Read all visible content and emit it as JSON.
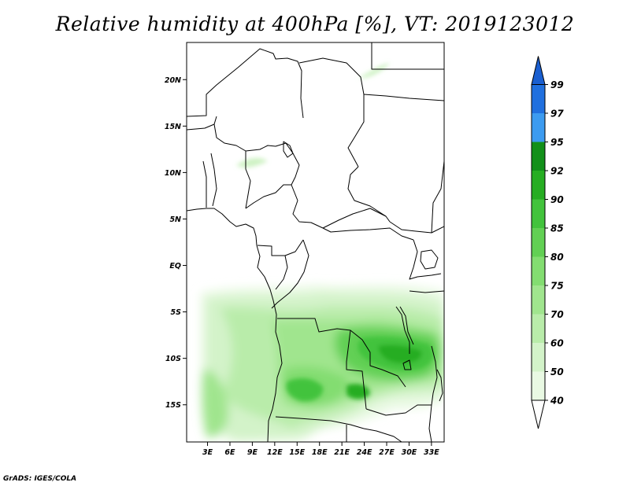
{
  "title": "Relative humidity at 400hPa [%], VT: 2019123012",
  "footer": "GrADS: IGES/COLA",
  "map": {
    "lat_range": [
      -19,
      24
    ],
    "lon_range": [
      0.2,
      34.7
    ],
    "lat_ticks": [
      {
        "value": 20,
        "label": "20N"
      },
      {
        "value": 15,
        "label": "15N"
      },
      {
        "value": 10,
        "label": "10N"
      },
      {
        "value": 5,
        "label": "5N"
      },
      {
        "value": 0,
        "label": "EQ"
      },
      {
        "value": -5,
        "label": "5S"
      },
      {
        "value": -10,
        "label": "10S"
      },
      {
        "value": -15,
        "label": "15S"
      }
    ],
    "lon_ticks": [
      {
        "value": 3,
        "label": "3E"
      },
      {
        "value": 6,
        "label": "6E"
      },
      {
        "value": 9,
        "label": "9E"
      },
      {
        "value": 12,
        "label": "12E"
      },
      {
        "value": 15,
        "label": "15E"
      },
      {
        "value": 18,
        "label": "18E"
      },
      {
        "value": 21,
        "label": "21E"
      },
      {
        "value": 24,
        "label": "24E"
      },
      {
        "value": 27,
        "label": "27E"
      },
      {
        "value": 30,
        "label": "30E"
      },
      {
        "value": 33,
        "label": "33E"
      }
    ]
  },
  "colorbar": {
    "levels": [
      {
        "label": "40",
        "color": "#e9f9e3"
      },
      {
        "label": "50",
        "color": "#d3f3c9"
      },
      {
        "label": "60",
        "color": "#b9ecaa"
      },
      {
        "label": "70",
        "color": "#a0e58e"
      },
      {
        "label": "75",
        "color": "#83dd71"
      },
      {
        "label": "80",
        "color": "#62d054"
      },
      {
        "label": "85",
        "color": "#42c33c"
      },
      {
        "label": "90",
        "color": "#26ad22"
      },
      {
        "label": "92",
        "color": "#12901a"
      },
      {
        "label": "95",
        "color": "#3c9bf0"
      },
      {
        "label": "97",
        "color": "#2070df"
      },
      {
        "label": "99",
        "color": "#1a5fd0"
      }
    ],
    "min_color": "#ffffff",
    "max_color": "#1a5fd0"
  }
}
